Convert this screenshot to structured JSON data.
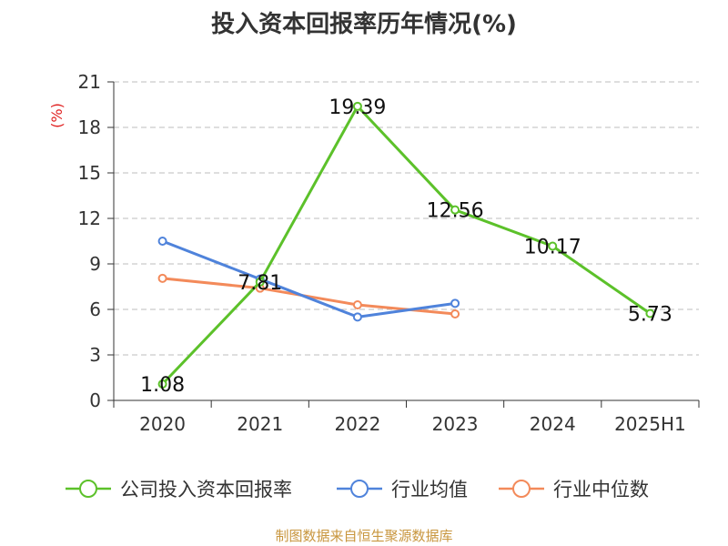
{
  "chart_data": {
    "type": "line",
    "title": "投入资本回报率历年情况(%)",
    "ylabel": "(%)",
    "categories": [
      "2020",
      "2021",
      "2022",
      "2023",
      "2024",
      "2025H1"
    ],
    "ylim": [
      0,
      21
    ],
    "yticks": [
      0,
      3,
      6,
      9,
      12,
      15,
      18,
      21
    ],
    "grid": true,
    "legend_position": "bottom",
    "series": [
      {
        "name": "公司投入资本回报率",
        "color": "#5cc12a",
        "values": [
          1.08,
          7.81,
          19.39,
          12.56,
          10.17,
          5.73
        ],
        "data_labels": true
      },
      {
        "name": "行业均值",
        "color": "#4f83db",
        "values": [
          10.5,
          8.0,
          5.5,
          6.4,
          null,
          null
        ],
        "data_labels": false
      },
      {
        "name": "行业中位数",
        "color": "#f38a5a",
        "values": [
          8.05,
          7.4,
          6.3,
          5.7,
          null,
          null
        ],
        "data_labels": false
      }
    ],
    "data_labels": [
      "1.08",
      "7.81",
      "19.39",
      "12.56",
      "10.17",
      "5.73"
    ]
  },
  "footer": {
    "source": "制图数据来自恒生聚源数据库"
  }
}
